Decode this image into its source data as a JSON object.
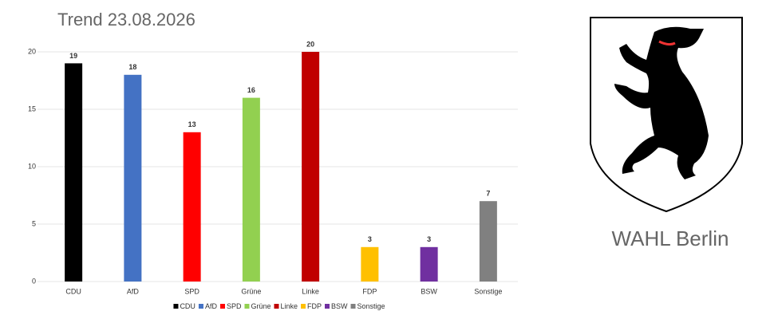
{
  "chart_data": {
    "type": "bar",
    "title": "Trend 23.08.2026",
    "categories": [
      "CDU",
      "AfD",
      "SPD",
      "Grüne",
      "Linke",
      "FDP",
      "BSW",
      "Sonstige"
    ],
    "values": [
      19,
      18,
      13,
      16,
      20,
      3,
      3,
      7
    ],
    "colors": [
      "#000000",
      "#4472c4",
      "#ff0000",
      "#92d050",
      "#c00000",
      "#ffc000",
      "#7030a0",
      "#808080"
    ],
    "ylim": [
      0,
      20
    ],
    "yticks": [
      0,
      5,
      10,
      15,
      20
    ],
    "grid": true,
    "legend": "bottom"
  },
  "caption": "WAHL Berlin"
}
